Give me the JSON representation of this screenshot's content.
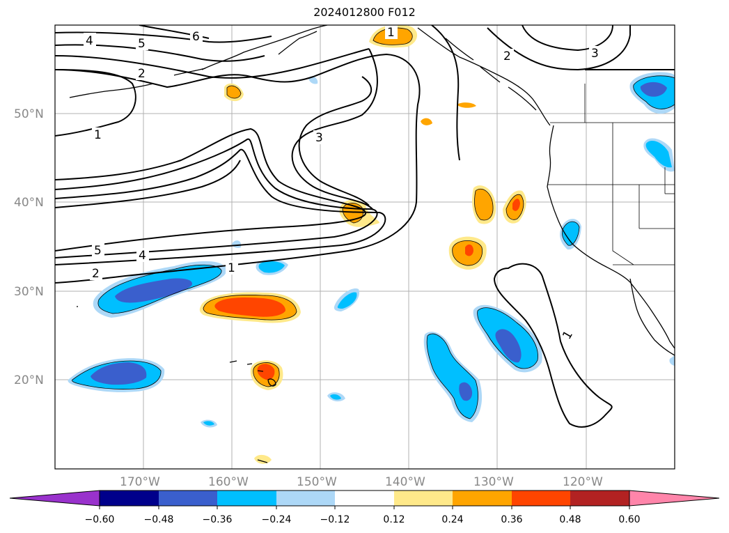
{
  "title": "2024012800 F012",
  "lat_labels": [
    "50°N",
    "40°N",
    "30°N",
    "20°N"
  ],
  "lon_labels": [
    "170°W",
    "160°W",
    "150°W",
    "140°W",
    "130°W",
    "120°W"
  ],
  "colorbar": {
    "ticks": [
      "−0.60",
      "−0.48",
      "−0.36",
      "−0.24",
      "−0.12",
      "0.12",
      "0.24",
      "0.36",
      "0.48",
      "0.60"
    ],
    "colors": [
      "#9932cc",
      "#00008b",
      "#3a5fcd",
      "#00bfff",
      "#add8f7",
      "#ffffff",
      "#ffe98a",
      "#ffa500",
      "#ff4500",
      "#b22222",
      "#ff85aa"
    ]
  },
  "contour_labels": [
    "4",
    "5",
    "6",
    "2",
    "1",
    "3",
    "5",
    "4",
    "2",
    "1",
    "1",
    "2",
    "3",
    "1"
  ]
}
